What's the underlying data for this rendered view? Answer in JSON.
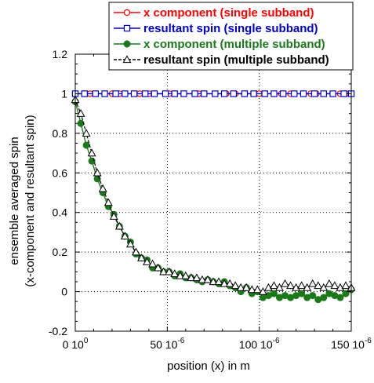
{
  "chart_data": {
    "type": "line",
    "xlabel": "position (x) in m",
    "ylabel_line1": "ensemble averaged spin",
    "ylabel_line2": "(x-component and resultant spin)",
    "xlim": [
      0,
      0.00015
    ],
    "ylim": [
      -0.2,
      1.2
    ],
    "xticks": [
      0,
      5e-05,
      0.0001,
      0.00015
    ],
    "xtick_labels": [
      "0 10",
      "50 10",
      "100 10",
      "150 10"
    ],
    "xtick_exponents": [
      "0",
      "-6",
      "-6",
      "-6"
    ],
    "yticks": [
      -0.2,
      0,
      0.2,
      0.4,
      0.6,
      0.8,
      1,
      1.2
    ],
    "ytick_labels": [
      "-0.2",
      "0",
      "0.2",
      "0.4",
      "0.6",
      "0.8",
      "1",
      "1.2"
    ],
    "grid": true,
    "legend_position": "top-right",
    "series": [
      {
        "name": "x component (single subband)",
        "color": "#ff0000",
        "marker": "open-circle",
        "dashed": false,
        "x": [
          0,
          5e-06,
          8e-06,
          2e-05,
          2.4e-05,
          3.5e-05,
          4e-05,
          5.1e-05,
          5.4e-05,
          6.7e-05,
          7e-05,
          8.2e-05,
          8.7e-05,
          9.8e-05,
          0.0001,
          0.000112,
          0.000117,
          0.000128,
          0.000131,
          0.000144,
          0.000147
        ],
        "y": [
          1,
          1,
          1,
          1,
          1,
          1,
          1,
          1,
          1,
          1,
          1,
          1,
          1,
          1,
          1,
          1,
          1,
          1,
          1,
          1,
          1
        ]
      },
      {
        "name": "resultant spin (single subband)",
        "color": "#0000cc",
        "marker": "open-square",
        "dashed": false,
        "x": [
          0,
          5e-06,
          1.1e-05,
          1.6e-05,
          2.2e-05,
          2.7e-05,
          3.2e-05,
          3.8e-05,
          4.3e-05,
          4.9e-05,
          5.4e-05,
          5.9e-05,
          6.5e-05,
          7e-05,
          7.6e-05,
          8.1e-05,
          8.6e-05,
          9.2e-05,
          9.7e-05,
          0.000103,
          0.000108,
          0.000113,
          0.000119,
          0.000124,
          0.00013,
          0.000135,
          0.00014,
          0.000146,
          0.00015
        ],
        "y": [
          1,
          1,
          1,
          1,
          1,
          1,
          1,
          1,
          1,
          1,
          1,
          1,
          1,
          1,
          1,
          1,
          1,
          1,
          1,
          1,
          1,
          1,
          1,
          1,
          1,
          1,
          1,
          1,
          1
        ]
      },
      {
        "name": "x component (multiple subband)",
        "color": "#1a7a1a",
        "marker": "filled-circle",
        "dashed": false,
        "x": [
          0,
          3e-06,
          6e-06,
          9e-06,
          1.2e-05,
          1.5e-05,
          1.8e-05,
          2.1e-05,
          2.4e-05,
          2.7e-05,
          3e-05,
          3.3e-05,
          3.6e-05,
          3.9e-05,
          4.2e-05,
          4.5e-05,
          4.8e-05,
          5.1e-05,
          5.4e-05,
          5.7e-05,
          6e-05,
          6.3e-05,
          6.6e-05,
          6.9e-05,
          7.2e-05,
          7.5e-05,
          7.8e-05,
          8.1e-05,
          8.4e-05,
          8.7e-05,
          9e-05,
          9.3e-05,
          9.6e-05,
          9.9e-05,
          0.000102,
          0.000105,
          0.000108,
          0.000111,
          0.000114,
          0.000117,
          0.00012,
          0.000123,
          0.000126,
          0.000129,
          0.000132,
          0.000135,
          0.000138,
          0.000141,
          0.000144,
          0.000147,
          0.00015
        ],
        "y": [
          0.96,
          0.85,
          0.74,
          0.66,
          0.57,
          0.5,
          0.43,
          0.39,
          0.33,
          0.28,
          0.25,
          0.19,
          0.17,
          0.16,
          0.12,
          0.12,
          0.1,
          0.1,
          0.08,
          0.09,
          0.07,
          0.07,
          0.06,
          0.05,
          0.06,
          0.05,
          0.04,
          0.05,
          0.03,
          0.02,
          0.0,
          0.02,
          -0.01,
          0.0,
          -0.03,
          -0.02,
          -0.01,
          -0.03,
          -0.02,
          -0.03,
          -0.02,
          -0.01,
          -0.03,
          -0.02,
          -0.04,
          -0.03,
          -0.01,
          -0.02,
          -0.03,
          -0.01,
          0.01
        ]
      },
      {
        "name": "resultant spin (multiple subband)",
        "color": "#000000",
        "marker": "open-triangle",
        "dashed": true,
        "x": [
          0,
          3e-06,
          6e-06,
          9e-06,
          1.2e-05,
          1.5e-05,
          1.8e-05,
          2.1e-05,
          2.4e-05,
          2.7e-05,
          3e-05,
          3.3e-05,
          3.6e-05,
          3.9e-05,
          4.2e-05,
          4.5e-05,
          4.8e-05,
          5.1e-05,
          5.4e-05,
          5.7e-05,
          6e-05,
          6.3e-05,
          6.6e-05,
          6.9e-05,
          7.2e-05,
          7.5e-05,
          7.8e-05,
          8.1e-05,
          8.4e-05,
          8.7e-05,
          9e-05,
          9.3e-05,
          9.6e-05,
          9.9e-05,
          0.000102,
          0.000105,
          0.000108,
          0.000111,
          0.000114,
          0.000117,
          0.00012,
          0.000123,
          0.000126,
          0.000129,
          0.000132,
          0.000135,
          0.000138,
          0.000141,
          0.000144,
          0.000147,
          0.00015
        ],
        "y": [
          0.97,
          0.9,
          0.8,
          0.7,
          0.6,
          0.52,
          0.45,
          0.38,
          0.33,
          0.28,
          0.24,
          0.2,
          0.17,
          0.15,
          0.14,
          0.12,
          0.1,
          0.1,
          0.09,
          0.08,
          0.08,
          0.07,
          0.07,
          0.06,
          0.06,
          0.05,
          0.05,
          0.04,
          0.04,
          0.03,
          0.02,
          0.02,
          0.01,
          0.01,
          0.0,
          0.02,
          0.03,
          0.02,
          0.04,
          0.03,
          0.02,
          0.03,
          0.02,
          0.04,
          0.03,
          0.02,
          0.04,
          0.03,
          0.02,
          0.03,
          0.02
        ]
      }
    ]
  }
}
